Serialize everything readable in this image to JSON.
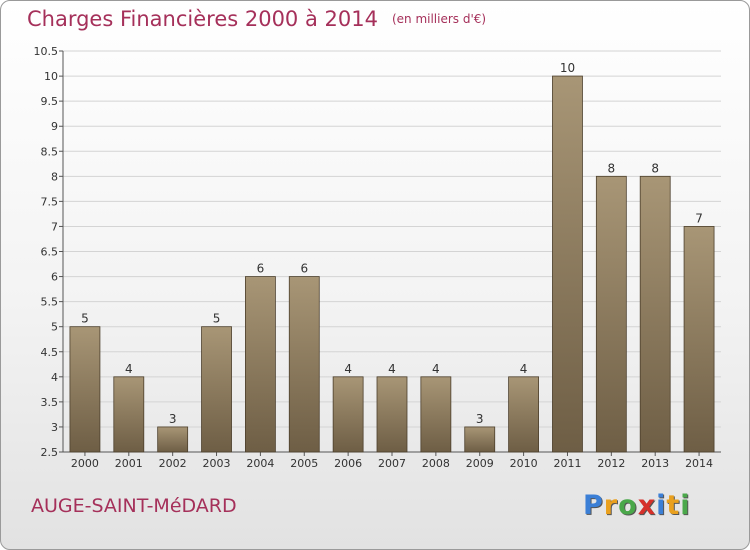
{
  "header": {
    "title": "Charges Financières 2000 à 2014",
    "unit": "(en milliers d'€)"
  },
  "commune": "AUGE-SAINT-MéDARD",
  "logo": {
    "letters": [
      {
        "ch": "P",
        "color": "#3b7fd6"
      },
      {
        "ch": "r",
        "color": "#e9a01e"
      },
      {
        "ch": "o",
        "color": "#4aa84a"
      },
      {
        "ch": "x",
        "color": "#d6302a"
      },
      {
        "ch": "i",
        "color": "#3b7fd6"
      },
      {
        "ch": "t",
        "color": "#e9a01e"
      },
      {
        "ch": "i",
        "color": "#4aa84a"
      }
    ]
  },
  "chart_data": {
    "type": "bar",
    "categories": [
      "2000",
      "2001",
      "2002",
      "2003",
      "2004",
      "2005",
      "2006",
      "2007",
      "2008",
      "2009",
      "2010",
      "2011",
      "2012",
      "2013",
      "2014"
    ],
    "values": [
      5,
      4,
      3,
      5,
      6,
      6,
      4,
      4,
      4,
      3,
      4,
      10,
      8,
      8,
      7
    ],
    "data_labels": [
      "5",
      "4",
      "3",
      "5",
      "6",
      "6",
      "4",
      "4",
      "4",
      "3",
      "4",
      "10",
      "8",
      "8",
      "7"
    ],
    "ylim": [
      2.5,
      10.5
    ],
    "yticks": [
      2.5,
      3,
      3.5,
      4,
      4.5,
      5,
      5.5,
      6,
      6.5,
      7,
      7.5,
      8,
      8.5,
      9,
      9.5,
      10,
      10.5
    ],
    "ytick_labels": [
      "2.5",
      "3",
      "3.5",
      "4",
      "4.5",
      "5",
      "5.5",
      "6",
      "6.5",
      "7",
      "7.5",
      "8",
      "8.5",
      "9",
      "9.5",
      "10",
      "10.5"
    ],
    "grid": true,
    "bar_color_top": "#a89676",
    "bar_color_bottom": "#6e5e45"
  }
}
